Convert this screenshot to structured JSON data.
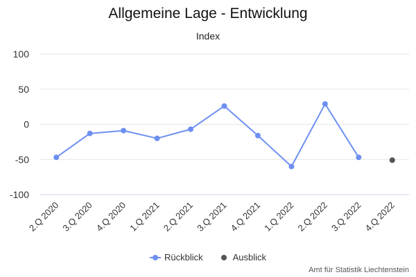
{
  "chart_data": {
    "type": "line",
    "title": "Allgemeine Lage - Entwicklung",
    "subtitle": "Index",
    "categories": [
      "2.Q 2020",
      "3.Q 2020",
      "4.Q 2020",
      "1.Q 2021",
      "2.Q 2021",
      "3.Q 2021",
      "4.Q 2021",
      "1.Q 2022",
      "2.Q 2022",
      "3.Q 2022",
      "4.Q 2022"
    ],
    "yticks": [
      "100",
      "50",
      "0",
      "-50",
      "-100"
    ],
    "ylim": [
      -100,
      100
    ],
    "grid": true,
    "legend_position": "bottom-center",
    "series": [
      {
        "name": "Rückblick",
        "color": "#6D8FF2",
        "values": [
          -47,
          -13,
          -9,
          -20,
          -7,
          26,
          -16,
          -60,
          29,
          -47,
          null
        ]
      },
      {
        "name": "Ausblick",
        "color": "#555555",
        "values": [
          null,
          null,
          null,
          null,
          null,
          null,
          null,
          null,
          null,
          null,
          -51
        ]
      }
    ],
    "credits": "Amt für Statistik Liechtenstein"
  }
}
